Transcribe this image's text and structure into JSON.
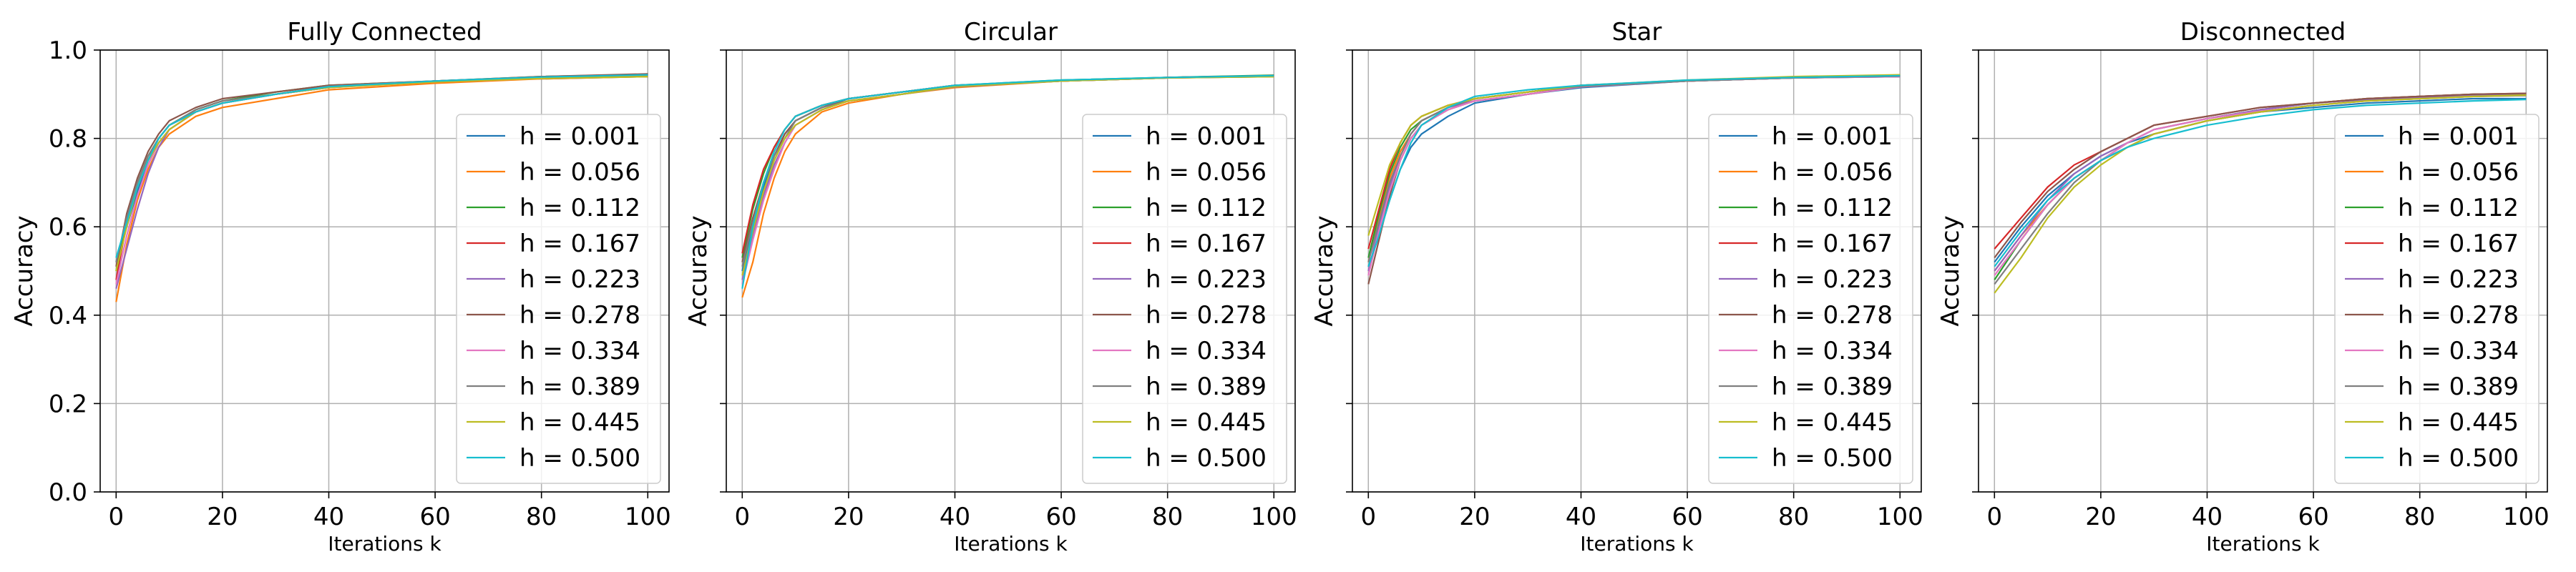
{
  "chart_data": [
    {
      "type": "line",
      "title": "Fully Connected",
      "xlabel": "Iterations k",
      "ylabel": "Accuracy",
      "xlim": [
        -3,
        104
      ],
      "ylim": [
        0.0,
        1.0
      ],
      "xticks": [
        0,
        20,
        40,
        60,
        80,
        100
      ],
      "yticks": [
        0.0,
        0.2,
        0.4,
        0.6,
        0.8,
        1.0
      ],
      "ytick_labels_visible": true,
      "grid": true,
      "legend": "right",
      "x": [
        0,
        2,
        4,
        6,
        8,
        10,
        15,
        20,
        30,
        40,
        60,
        80,
        100
      ],
      "series": [
        {
          "name": "h = 0.001",
          "values": [
            0.52,
            0.6,
            0.68,
            0.74,
            0.79,
            0.82,
            0.86,
            0.88,
            0.9,
            0.915,
            0.93,
            0.935,
            0.94
          ]
        },
        {
          "name": "h = 0.056",
          "values": [
            0.43,
            0.56,
            0.66,
            0.73,
            0.78,
            0.81,
            0.85,
            0.87,
            0.89,
            0.91,
            0.925,
            0.935,
            0.94
          ]
        },
        {
          "name": "h = 0.112",
          "values": [
            0.5,
            0.62,
            0.7,
            0.76,
            0.8,
            0.83,
            0.865,
            0.885,
            0.905,
            0.92,
            0.93,
            0.94,
            0.945
          ]
        },
        {
          "name": "h = 0.167",
          "values": [
            0.48,
            0.61,
            0.69,
            0.75,
            0.8,
            0.83,
            0.86,
            0.88,
            0.9,
            0.915,
            0.93,
            0.938,
            0.944
          ]
        },
        {
          "name": "h = 0.223",
          "values": [
            0.46,
            0.55,
            0.64,
            0.72,
            0.78,
            0.82,
            0.86,
            0.88,
            0.9,
            0.915,
            0.93,
            0.937,
            0.942
          ]
        },
        {
          "name": "h = 0.278",
          "values": [
            0.51,
            0.63,
            0.71,
            0.77,
            0.81,
            0.84,
            0.87,
            0.89,
            0.905,
            0.92,
            0.93,
            0.94,
            0.946
          ]
        },
        {
          "name": "h = 0.334",
          "values": [
            0.47,
            0.58,
            0.67,
            0.74,
            0.79,
            0.82,
            0.86,
            0.88,
            0.9,
            0.915,
            0.928,
            0.936,
            0.942
          ]
        },
        {
          "name": "h = 0.389",
          "values": [
            0.52,
            0.62,
            0.7,
            0.76,
            0.8,
            0.83,
            0.865,
            0.885,
            0.9,
            0.918,
            0.93,
            0.938,
            0.943
          ]
        },
        {
          "name": "h = 0.445",
          "values": [
            0.5,
            0.6,
            0.69,
            0.75,
            0.79,
            0.82,
            0.86,
            0.88,
            0.9,
            0.915,
            0.928,
            0.936,
            0.94
          ]
        },
        {
          "name": "h = 0.500",
          "values": [
            0.53,
            0.61,
            0.69,
            0.75,
            0.8,
            0.83,
            0.86,
            0.88,
            0.9,
            0.917,
            0.93,
            0.939,
            0.944
          ]
        }
      ]
    },
    {
      "type": "line",
      "title": "Circular",
      "xlabel": "Iterations k",
      "ylabel": "Accuracy",
      "xlim": [
        -3,
        104
      ],
      "ylim": [
        0.0,
        1.0
      ],
      "xticks": [
        0,
        20,
        40,
        60,
        80,
        100
      ],
      "yticks": [
        0.0,
        0.2,
        0.4,
        0.6,
        0.8,
        1.0
      ],
      "ytick_labels_visible": false,
      "grid": true,
      "legend": "right",
      "x": [
        0,
        2,
        4,
        6,
        8,
        10,
        15,
        20,
        30,
        40,
        60,
        80,
        100
      ],
      "series": [
        {
          "name": "h = 0.001",
          "values": [
            0.5,
            0.6,
            0.69,
            0.76,
            0.81,
            0.84,
            0.87,
            0.89,
            0.905,
            0.92,
            0.93,
            0.938,
            0.942
          ]
        },
        {
          "name": "h = 0.056",
          "values": [
            0.44,
            0.52,
            0.63,
            0.71,
            0.77,
            0.81,
            0.86,
            0.88,
            0.9,
            0.915,
            0.93,
            0.937,
            0.94
          ]
        },
        {
          "name": "h = 0.112",
          "values": [
            0.53,
            0.64,
            0.72,
            0.78,
            0.82,
            0.85,
            0.875,
            0.89,
            0.905,
            0.92,
            0.932,
            0.938,
            0.943
          ]
        },
        {
          "name": "h = 0.167",
          "values": [
            0.54,
            0.65,
            0.73,
            0.78,
            0.82,
            0.85,
            0.875,
            0.89,
            0.905,
            0.92,
            0.93,
            0.938,
            0.942
          ]
        },
        {
          "name": "h = 0.223",
          "values": [
            0.48,
            0.58,
            0.67,
            0.74,
            0.79,
            0.83,
            0.865,
            0.885,
            0.9,
            0.918,
            0.93,
            0.937,
            0.941
          ]
        },
        {
          "name": "h = 0.278",
          "values": [
            0.52,
            0.62,
            0.7,
            0.76,
            0.81,
            0.84,
            0.87,
            0.89,
            0.905,
            0.918,
            0.93,
            0.937,
            0.942
          ]
        },
        {
          "name": "h = 0.334",
          "values": [
            0.47,
            0.57,
            0.66,
            0.73,
            0.79,
            0.83,
            0.865,
            0.885,
            0.9,
            0.917,
            0.93,
            0.937,
            0.941
          ]
        },
        {
          "name": "h = 0.389",
          "values": [
            0.51,
            0.61,
            0.7,
            0.76,
            0.8,
            0.84,
            0.87,
            0.885,
            0.9,
            0.917,
            0.93,
            0.937,
            0.94
          ]
        },
        {
          "name": "h = 0.445",
          "values": [
            0.49,
            0.59,
            0.68,
            0.75,
            0.8,
            0.83,
            0.865,
            0.885,
            0.9,
            0.918,
            0.93,
            0.937,
            0.94
          ]
        },
        {
          "name": "h = 0.500",
          "values": [
            0.46,
            0.6,
            0.7,
            0.77,
            0.82,
            0.85,
            0.875,
            0.89,
            0.905,
            0.92,
            0.932,
            0.938,
            0.942
          ]
        }
      ]
    },
    {
      "type": "line",
      "title": "Star",
      "xlabel": "Iterations k",
      "ylabel": "Accuracy",
      "xlim": [
        -3,
        104
      ],
      "ylim": [
        0.0,
        1.0
      ],
      "xticks": [
        0,
        20,
        40,
        60,
        80,
        100
      ],
      "yticks": [
        0.0,
        0.2,
        0.4,
        0.6,
        0.8,
        1.0
      ],
      "ytick_labels_visible": false,
      "grid": true,
      "legend": "right",
      "x": [
        0,
        2,
        4,
        6,
        8,
        10,
        15,
        20,
        30,
        40,
        60,
        80,
        100
      ],
      "series": [
        {
          "name": "h = 0.001",
          "values": [
            0.51,
            0.58,
            0.66,
            0.73,
            0.78,
            0.81,
            0.85,
            0.88,
            0.9,
            0.915,
            0.93,
            0.937,
            0.94
          ]
        },
        {
          "name": "h = 0.056",
          "values": [
            0.52,
            0.62,
            0.71,
            0.77,
            0.81,
            0.84,
            0.87,
            0.89,
            0.905,
            0.92,
            0.93,
            0.938,
            0.942
          ]
        },
        {
          "name": "h = 0.112",
          "values": [
            0.53,
            0.63,
            0.72,
            0.78,
            0.82,
            0.84,
            0.87,
            0.89,
            0.905,
            0.92,
            0.93,
            0.938,
            0.942
          ]
        },
        {
          "name": "h = 0.167",
          "values": [
            0.55,
            0.64,
            0.73,
            0.79,
            0.83,
            0.85,
            0.875,
            0.89,
            0.905,
            0.92,
            0.93,
            0.937,
            0.941
          ]
        },
        {
          "name": "h = 0.223",
          "values": [
            0.5,
            0.6,
            0.69,
            0.76,
            0.81,
            0.84,
            0.87,
            0.885,
            0.9,
            0.917,
            0.93,
            0.937,
            0.94
          ]
        },
        {
          "name": "h = 0.278",
          "values": [
            0.47,
            0.57,
            0.67,
            0.75,
            0.8,
            0.83,
            0.865,
            0.885,
            0.9,
            0.917,
            0.93,
            0.937,
            0.941
          ]
        },
        {
          "name": "h = 0.334",
          "values": [
            0.49,
            0.59,
            0.68,
            0.75,
            0.8,
            0.83,
            0.865,
            0.885,
            0.9,
            0.917,
            0.93,
            0.937,
            0.94
          ]
        },
        {
          "name": "h = 0.389",
          "values": [
            0.52,
            0.61,
            0.7,
            0.76,
            0.81,
            0.84,
            0.87,
            0.89,
            0.905,
            0.918,
            0.93,
            0.937,
            0.941
          ]
        },
        {
          "name": "h = 0.445",
          "values": [
            0.58,
            0.66,
            0.74,
            0.79,
            0.83,
            0.85,
            0.875,
            0.89,
            0.905,
            0.92,
            0.932,
            0.94,
            0.944
          ]
        },
        {
          "name": "h = 0.500",
          "values": [
            0.51,
            0.58,
            0.66,
            0.73,
            0.79,
            0.83,
            0.87,
            0.895,
            0.91,
            0.92,
            0.932,
            0.938,
            0.942
          ]
        }
      ]
    },
    {
      "type": "line",
      "title": "Disconnected",
      "xlabel": "Iterations k",
      "ylabel": "Accuracy",
      "xlim": [
        -3,
        104
      ],
      "ylim": [
        0.0,
        1.0
      ],
      "xticks": [
        0,
        20,
        40,
        60,
        80,
        100
      ],
      "yticks": [
        0.0,
        0.2,
        0.4,
        0.6,
        0.8,
        1.0
      ],
      "ytick_labels_visible": false,
      "grid": true,
      "legend": "right",
      "x": [
        0,
        5,
        10,
        15,
        20,
        25,
        30,
        40,
        50,
        60,
        70,
        80,
        90,
        100
      ],
      "series": [
        {
          "name": "h = 0.001",
          "values": [
            0.52,
            0.6,
            0.67,
            0.72,
            0.76,
            0.79,
            0.81,
            0.84,
            0.86,
            0.87,
            0.88,
            0.885,
            0.89,
            0.89
          ]
        },
        {
          "name": "h = 0.056",
          "values": [
            0.5,
            0.58,
            0.65,
            0.71,
            0.75,
            0.78,
            0.81,
            0.84,
            0.86,
            0.875,
            0.885,
            0.89,
            0.895,
            0.898
          ]
        },
        {
          "name": "h = 0.112",
          "values": [
            0.48,
            0.57,
            0.65,
            0.71,
            0.75,
            0.79,
            0.82,
            0.845,
            0.865,
            0.88,
            0.89,
            0.895,
            0.9,
            0.9
          ]
        },
        {
          "name": "h = 0.167",
          "values": [
            0.55,
            0.62,
            0.69,
            0.74,
            0.77,
            0.8,
            0.83,
            0.85,
            0.87,
            0.88,
            0.89,
            0.895,
            0.9,
            0.902
          ]
        },
        {
          "name": "h = 0.223",
          "values": [
            0.5,
            0.58,
            0.66,
            0.72,
            0.76,
            0.79,
            0.82,
            0.845,
            0.865,
            0.88,
            0.888,
            0.893,
            0.897,
            0.9
          ]
        },
        {
          "name": "h = 0.278",
          "values": [
            0.53,
            0.61,
            0.68,
            0.73,
            0.77,
            0.8,
            0.83,
            0.85,
            0.87,
            0.88,
            0.89,
            0.895,
            0.9,
            0.902
          ]
        },
        {
          "name": "h = 0.334",
          "values": [
            0.49,
            0.57,
            0.65,
            0.71,
            0.75,
            0.79,
            0.82,
            0.845,
            0.862,
            0.875,
            0.885,
            0.89,
            0.895,
            0.897
          ]
        },
        {
          "name": "h = 0.389",
          "values": [
            0.47,
            0.55,
            0.63,
            0.7,
            0.75,
            0.78,
            0.81,
            0.84,
            0.86,
            0.875,
            0.885,
            0.89,
            0.895,
            0.897
          ]
        },
        {
          "name": "h = 0.445",
          "values": [
            0.45,
            0.53,
            0.62,
            0.69,
            0.74,
            0.78,
            0.81,
            0.84,
            0.86,
            0.875,
            0.885,
            0.89,
            0.895,
            0.898
          ]
        },
        {
          "name": "h = 0.500",
          "values": [
            0.51,
            0.59,
            0.66,
            0.71,
            0.75,
            0.78,
            0.8,
            0.83,
            0.85,
            0.865,
            0.875,
            0.88,
            0.885,
            0.888
          ]
        }
      ]
    }
  ],
  "series_colors": [
    "#1f77b4",
    "#ff7f0e",
    "#2ca02c",
    "#d62728",
    "#9467bd",
    "#8c564b",
    "#e377c2",
    "#7f7f7f",
    "#bcbd22",
    "#17becf"
  ],
  "axis_color": "#000000",
  "grid_color": "#b0b0b0"
}
